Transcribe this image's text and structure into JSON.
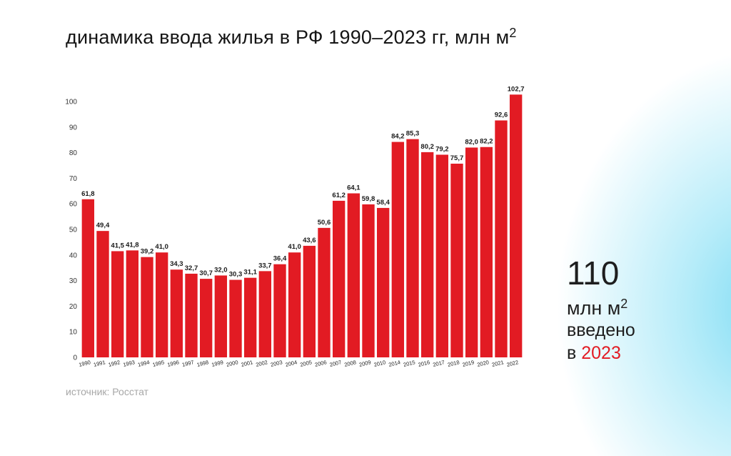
{
  "title": {
    "text": "динамика ввода жилья в РФ 1990–2023 гг, млн м",
    "sup": "2"
  },
  "source": "источник: Росстат",
  "side_note": {
    "big": "110",
    "unit": "млн м",
    "unit_sup": "2",
    "line3": "введено",
    "line4_prefix": "в",
    "year": "2023"
  },
  "colors": {
    "bar": "#e21b23",
    "accent": "#e21b23",
    "text": "#151515",
    "glow": "#7fdcf4"
  },
  "chart_data": {
    "type": "bar",
    "title": "динамика ввода жилья в РФ 1990–2023 гг, млн м2",
    "xlabel": "",
    "ylabel": "",
    "ylim": [
      0,
      110
    ],
    "yticks": [
      0,
      10,
      20,
      30,
      40,
      50,
      60,
      70,
      80,
      90,
      100
    ],
    "grid": false,
    "legend": "none",
    "categories": [
      "1990",
      "1991",
      "1992",
      "1993",
      "1994",
      "1995",
      "1996",
      "1997",
      "1998",
      "1999",
      "2000",
      "2001",
      "2002",
      "2003",
      "2004",
      "2005",
      "2006",
      "2007",
      "2008",
      "2009",
      "2010",
      "2014",
      "2015",
      "2016",
      "2017",
      "2018",
      "2019",
      "2020",
      "2021",
      "2022"
    ],
    "values": [
      61.8,
      49.4,
      41.5,
      41.8,
      39.2,
      41.0,
      34.3,
      32.7,
      30.7,
      32.0,
      30.3,
      31.1,
      33.7,
      36.4,
      41.0,
      43.6,
      50.6,
      61.2,
      64.1,
      59.8,
      58.4,
      84.2,
      85.3,
      80.2,
      79.2,
      75.7,
      82.0,
      82.2,
      92.6,
      102.7
    ],
    "data_labels": [
      "61,8",
      "49,4",
      "41,5",
      "41,8",
      "39,2",
      "41,0",
      "34,3",
      "32,7",
      "30,7",
      "32,0",
      "30,3",
      "31,1",
      "33,7",
      "36,4",
      "41,0",
      "43,6",
      "50,6",
      "61,2",
      "64,1",
      "59,8",
      "58,4",
      "84,2",
      "85,3",
      "80,2",
      "79,2",
      "75,7",
      "82,0",
      "82,2",
      "92,6",
      "102,7"
    ]
  }
}
